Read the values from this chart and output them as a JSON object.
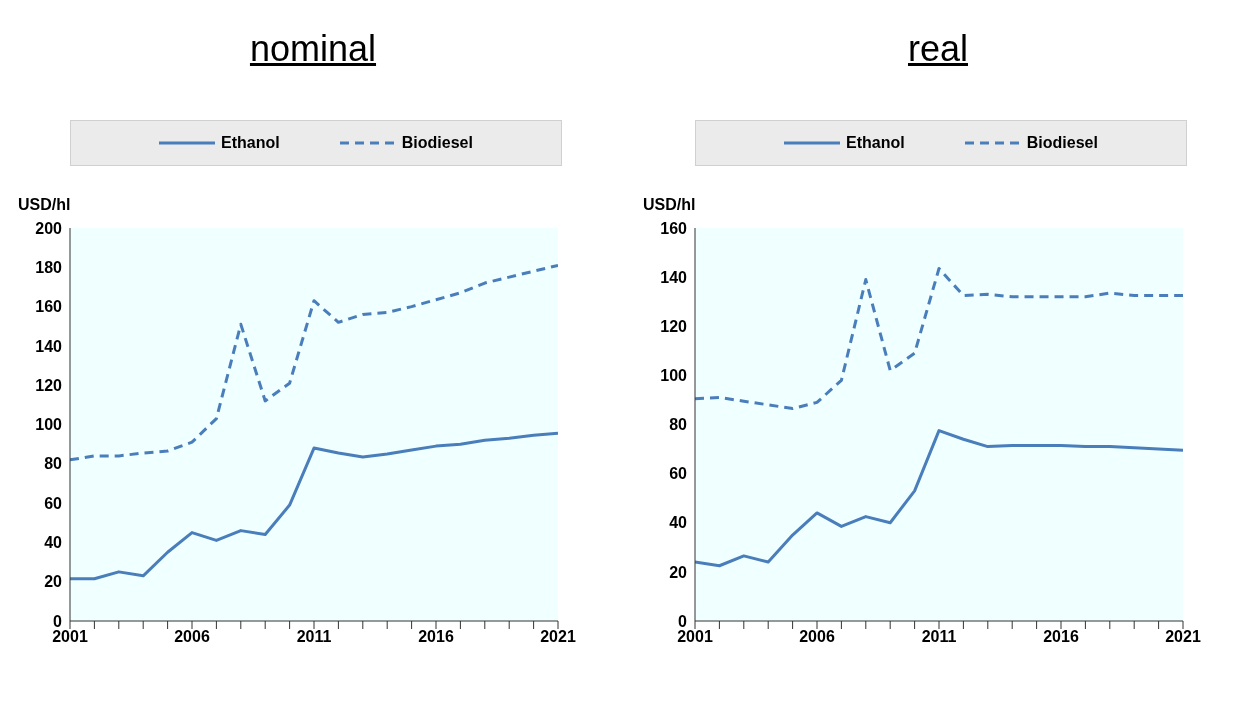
{
  "chart_data": [
    {
      "type": "line",
      "title": "nominal",
      "ylabel": "USD/hl",
      "legend": "top",
      "x": [
        2001,
        2002,
        2003,
        2004,
        2005,
        2006,
        2007,
        2008,
        2009,
        2010,
        2011,
        2012,
        2013,
        2014,
        2015,
        2016,
        2017,
        2018,
        2019,
        2020,
        2021
      ],
      "xlim": [
        2001,
        2021
      ],
      "xticks": [
        2001,
        {
          "value": 2002,
          "label": null
        },
        {
          "value": 2003,
          "label": null
        },
        {
          "value": 2004,
          "label": null
        },
        {
          "value": 2005,
          "label": null
        },
        2006,
        {
          "value": 2007,
          "label": null
        },
        {
          "value": 2008,
          "label": null
        },
        {
          "value": 2009,
          "label": null
        },
        {
          "value": 2010,
          "label": null
        },
        2011,
        {
          "value": 2012,
          "label": null
        },
        {
          "value": 2013,
          "label": null
        },
        {
          "value": 2014,
          "label": null
        },
        {
          "value": 2015,
          "label": null
        },
        2016,
        {
          "value": 2017,
          "label": null
        },
        {
          "value": 2018,
          "label": null
        },
        {
          "value": 2019,
          "label": null
        },
        {
          "value": 2020,
          "label": null
        },
        2021
      ],
      "ylim": [
        0,
        200
      ],
      "yticks": [
        0,
        20,
        40,
        60,
        80,
        100,
        120,
        140,
        160,
        180,
        200
      ],
      "marker": "none",
      "series": [
        {
          "name": "Ethanol",
          "color": "#4a7ebb",
          "line_style": "solid",
          "values": [
            21.5,
            21.5,
            25,
            23,
            35,
            45,
            41,
            46,
            44,
            59,
            88,
            85.5,
            83.5,
            85,
            87,
            89,
            90,
            92,
            93,
            94.5,
            95.5
          ]
        },
        {
          "name": "Biodiesel",
          "color": "#4a7ebb",
          "line_style": "dashed",
          "values": [
            82,
            84,
            84,
            85.5,
            86.5,
            91,
            103,
            151,
            112,
            121,
            163,
            152,
            156,
            157,
            160,
            163.5,
            167,
            172,
            175,
            178,
            181
          ]
        }
      ]
    },
    {
      "type": "line",
      "title": "real",
      "ylabel": "USD/hl",
      "legend": "top",
      "x": [
        2001,
        2002,
        2003,
        2004,
        2005,
        2006,
        2007,
        2008,
        2009,
        2010,
        2011,
        2012,
        2013,
        2014,
        2015,
        2016,
        2017,
        2018,
        2019,
        2020,
        2021
      ],
      "xlim": [
        2001,
        2021
      ],
      "xticks": [
        2001,
        {
          "value": 2002,
          "label": null
        },
        {
          "value": 2003,
          "label": null
        },
        {
          "value": 2004,
          "label": null
        },
        {
          "value": 2005,
          "label": null
        },
        2006,
        {
          "value": 2007,
          "label": null
        },
        {
          "value": 2008,
          "label": null
        },
        {
          "value": 2009,
          "label": null
        },
        {
          "value": 2010,
          "label": null
        },
        2011,
        {
          "value": 2012,
          "label": null
        },
        {
          "value": 2013,
          "label": null
        },
        {
          "value": 2014,
          "label": null
        },
        {
          "value": 2015,
          "label": null
        },
        2016,
        {
          "value": 2017,
          "label": null
        },
        {
          "value": 2018,
          "label": null
        },
        {
          "value": 2019,
          "label": null
        },
        {
          "value": 2020,
          "label": null
        },
        2021
      ],
      "ylim": [
        0,
        160
      ],
      "yticks": [
        0,
        20,
        40,
        60,
        80,
        100,
        120,
        140,
        160
      ],
      "marker": "none",
      "series": [
        {
          "name": "Ethanol",
          "color": "#4a7ebb",
          "line_style": "solid",
          "values": [
            24,
            22.5,
            26.5,
            24,
            35,
            44,
            38.5,
            42.5,
            40,
            53,
            77.5,
            74,
            71,
            71.5,
            71.5,
            71.5,
            71,
            71,
            70.5,
            70,
            69.5
          ]
        },
        {
          "name": "Biodiesel",
          "color": "#4a7ebb",
          "line_style": "dashed",
          "values": [
            90.5,
            91,
            89.5,
            88,
            86.5,
            89,
            98,
            139,
            102,
            109,
            143.5,
            132.5,
            133,
            132,
            132,
            132,
            132,
            133.5,
            132.5,
            132.5,
            132.5
          ]
        }
      ]
    }
  ]
}
